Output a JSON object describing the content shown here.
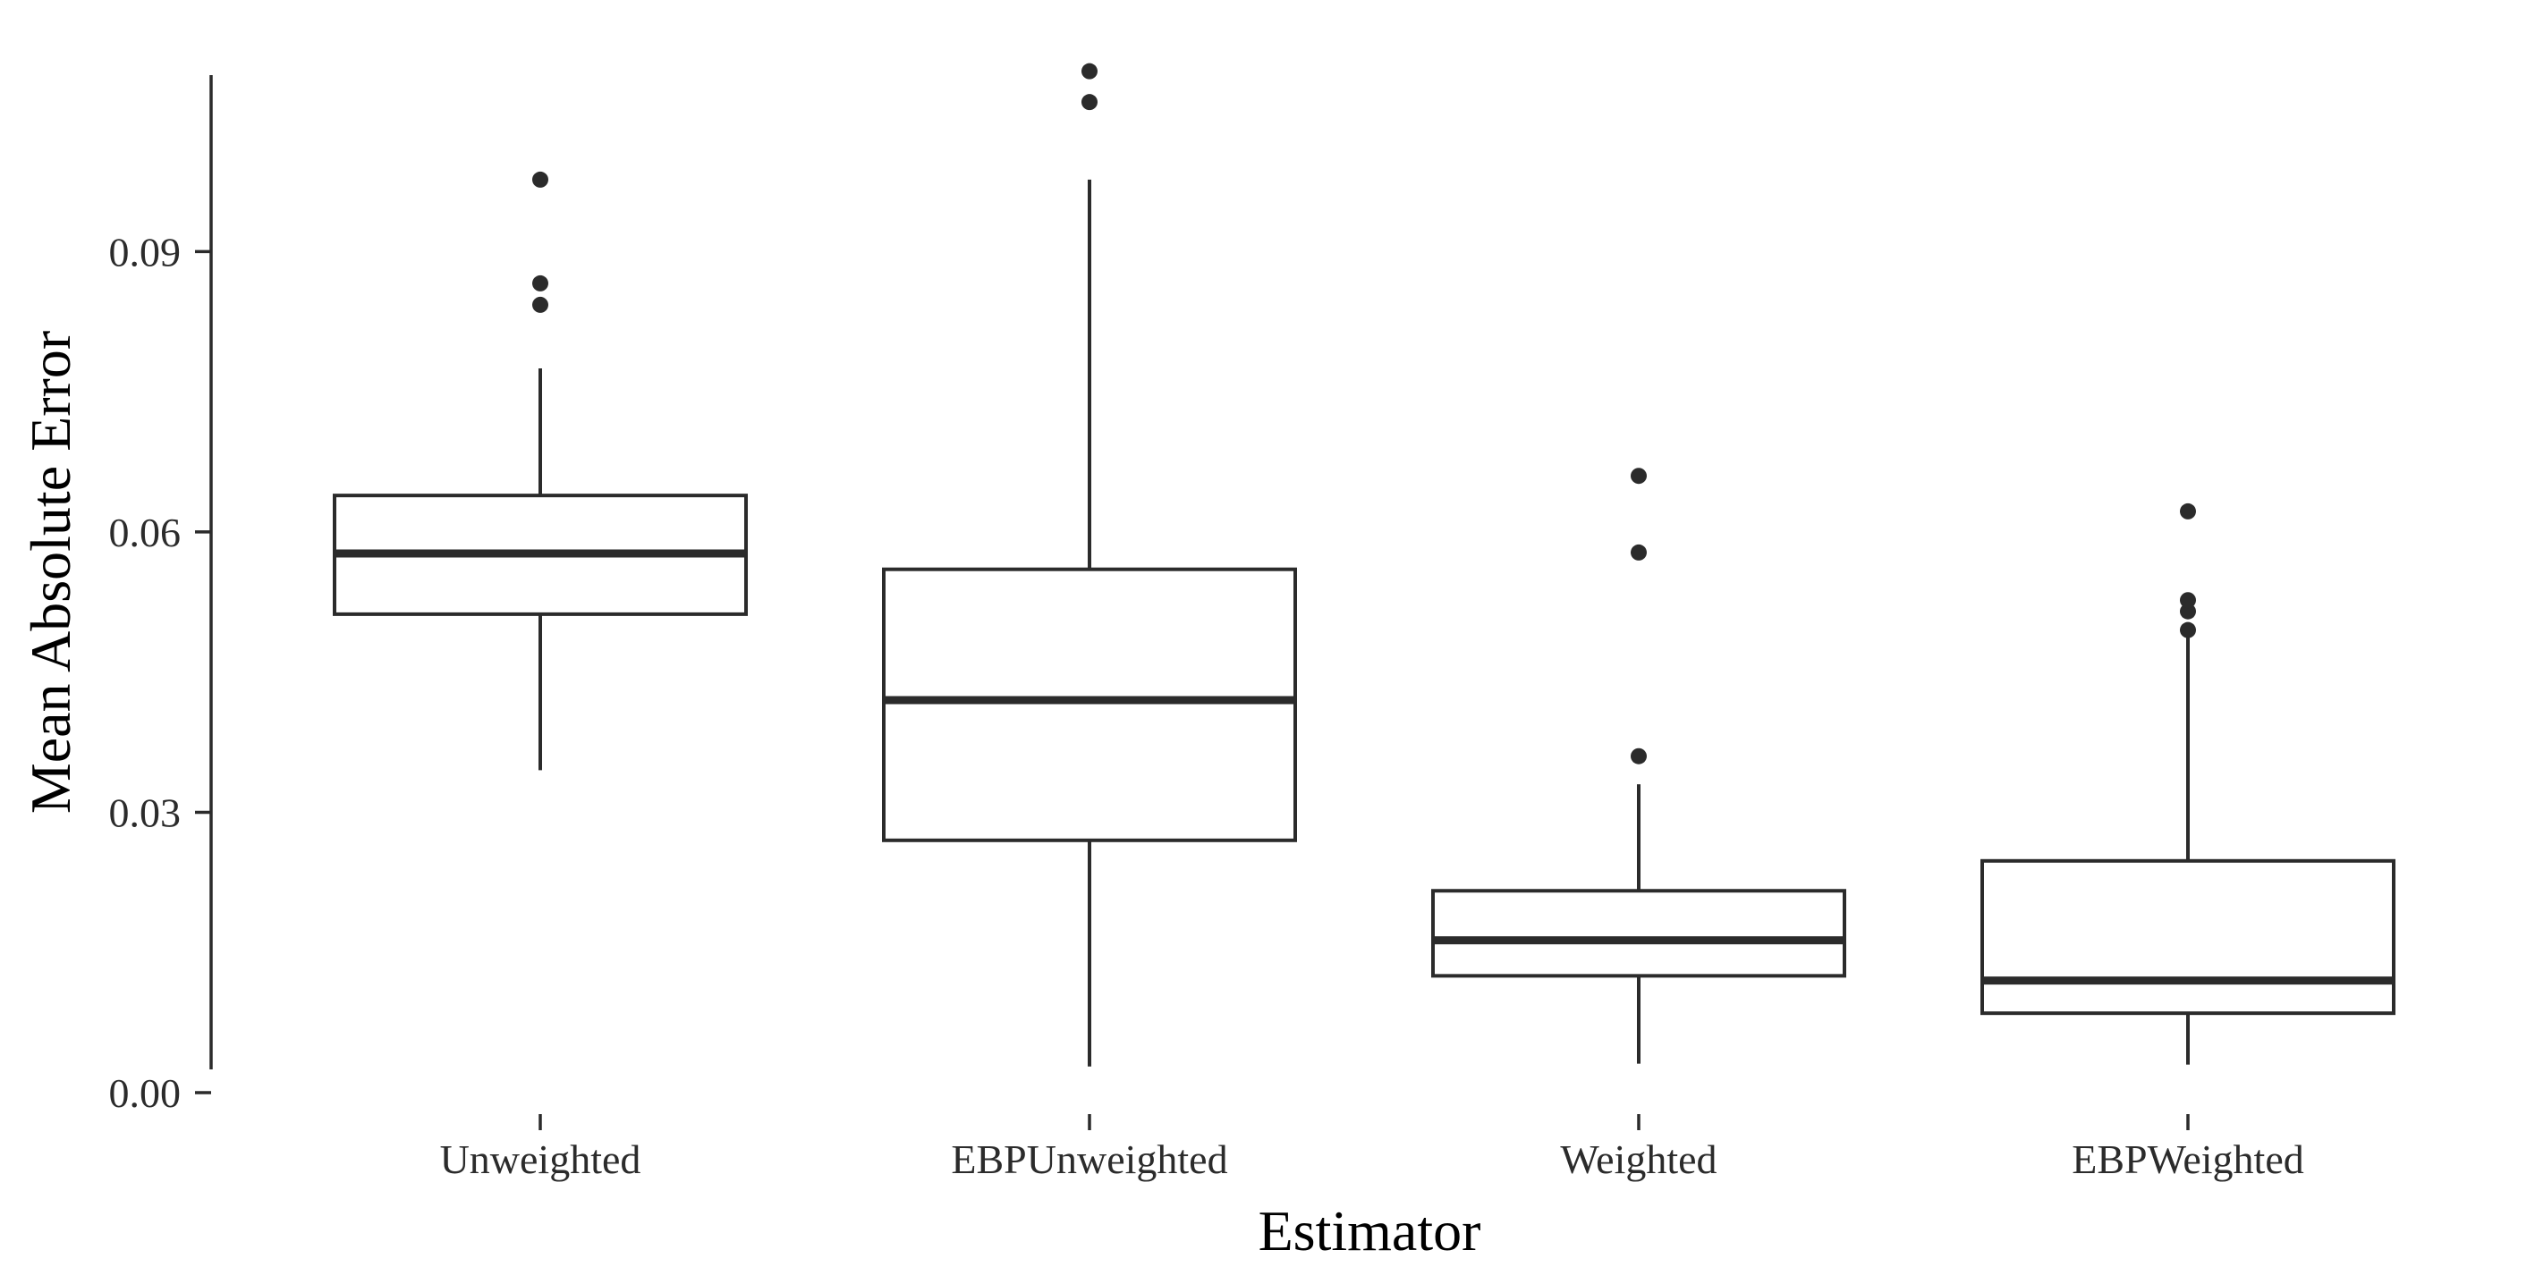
{
  "chart_data": {
    "type": "box",
    "xlabel": "Estimator",
    "ylabel": "Mean Absolute Error",
    "ylim": [
      0.0,
      0.1085
    ],
    "yticks": [
      0.0,
      0.03,
      0.06,
      0.09
    ],
    "ytick_labels": [
      "0.00",
      "0.03",
      "0.06",
      "0.09"
    ],
    "grid": false,
    "categories": [
      "Unweighted",
      "EBPUnweighted",
      "Weighted",
      "EBPWeighted"
    ],
    "boxes": [
      {
        "category": "Unweighted",
        "whisker_low": 0.0345,
        "q1": 0.0512,
        "median": 0.0577,
        "q3": 0.0639,
        "whisker_high": 0.0775,
        "outliers": [
          0.0843,
          0.0866,
          0.0977
        ]
      },
      {
        "category": "EBPUnweighted",
        "whisker_low": 0.0028,
        "q1": 0.027,
        "median": 0.042,
        "q3": 0.056,
        "whisker_high": 0.0977,
        "outliers": [
          0.106,
          0.1093
        ]
      },
      {
        "category": "Weighted",
        "whisker_low": 0.0031,
        "q1": 0.0125,
        "median": 0.0163,
        "q3": 0.0216,
        "whisker_high": 0.033,
        "outliers": [
          0.036,
          0.0578,
          0.066
        ]
      },
      {
        "category": "EBPWeighted",
        "whisker_low": 0.003,
        "q1": 0.0085,
        "median": 0.012,
        "q3": 0.0248,
        "whisker_high": 0.049,
        "outliers": [
          0.0495,
          0.0515,
          0.0527,
          0.0622
        ]
      }
    ],
    "colors": {
      "box_line": "#2b2b2b",
      "box_fill": "#ffffff",
      "outlier": "#2b2b2b",
      "background": "#ffffff"
    }
  }
}
